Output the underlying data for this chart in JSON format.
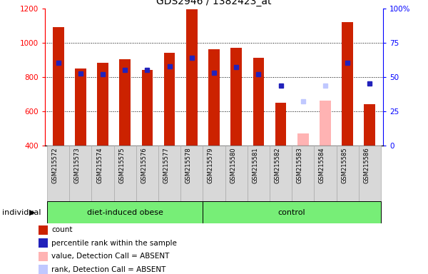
{
  "title": "GDS2946 / 1382423_at",
  "samples": [
    "GSM215572",
    "GSM215573",
    "GSM215574",
    "GSM215575",
    "GSM215576",
    "GSM215577",
    "GSM215578",
    "GSM215579",
    "GSM215580",
    "GSM215581",
    "GSM215582",
    "GSM215583",
    "GSM215584",
    "GSM215585",
    "GSM215586"
  ],
  "groups": {
    "diet-induced obese": [
      0,
      1,
      2,
      3,
      4,
      5,
      6
    ],
    "control": [
      7,
      8,
      9,
      10,
      11,
      12,
      13,
      14
    ]
  },
  "bar_bottom": 400,
  "count_values": [
    1090,
    848,
    882,
    902,
    840,
    938,
    1192,
    960,
    968,
    912,
    648,
    468,
    660,
    1120,
    638
  ],
  "rank_values": [
    880,
    820,
    816,
    840,
    840,
    860,
    912,
    824,
    856,
    816,
    748,
    656,
    748,
    880,
    760
  ],
  "absent_value_bars": [
    null,
    null,
    null,
    null,
    null,
    null,
    null,
    null,
    null,
    null,
    null,
    468,
    660,
    null,
    null
  ],
  "absent_rank_bars": [
    null,
    null,
    null,
    null,
    null,
    null,
    null,
    null,
    null,
    null,
    null,
    656,
    748,
    null,
    null
  ],
  "ylim_left": [
    400,
    1200
  ],
  "ylim_right": [
    0,
    100
  ],
  "yticks_left": [
    400,
    600,
    800,
    1000,
    1200
  ],
  "yticks_right": [
    0,
    25,
    50,
    75,
    100
  ],
  "bar_width": 0.5,
  "count_color": "#CC2200",
  "rank_color": "#2222BB",
  "absent_value_color": "#FFB3B3",
  "absent_rank_color": "#C0C8FF",
  "group_bar_color": "#77EE77",
  "axis_bg_color": "#D8D8D8",
  "plot_bg_color": "#FFFFFF",
  "legend_items": [
    {
      "label": "count",
      "color": "#CC2200"
    },
    {
      "label": "percentile rank within the sample",
      "color": "#2222BB"
    },
    {
      "label": "value, Detection Call = ABSENT",
      "color": "#FFB3B3"
    },
    {
      "label": "rank, Detection Call = ABSENT",
      "color": "#C0C8FF"
    }
  ]
}
